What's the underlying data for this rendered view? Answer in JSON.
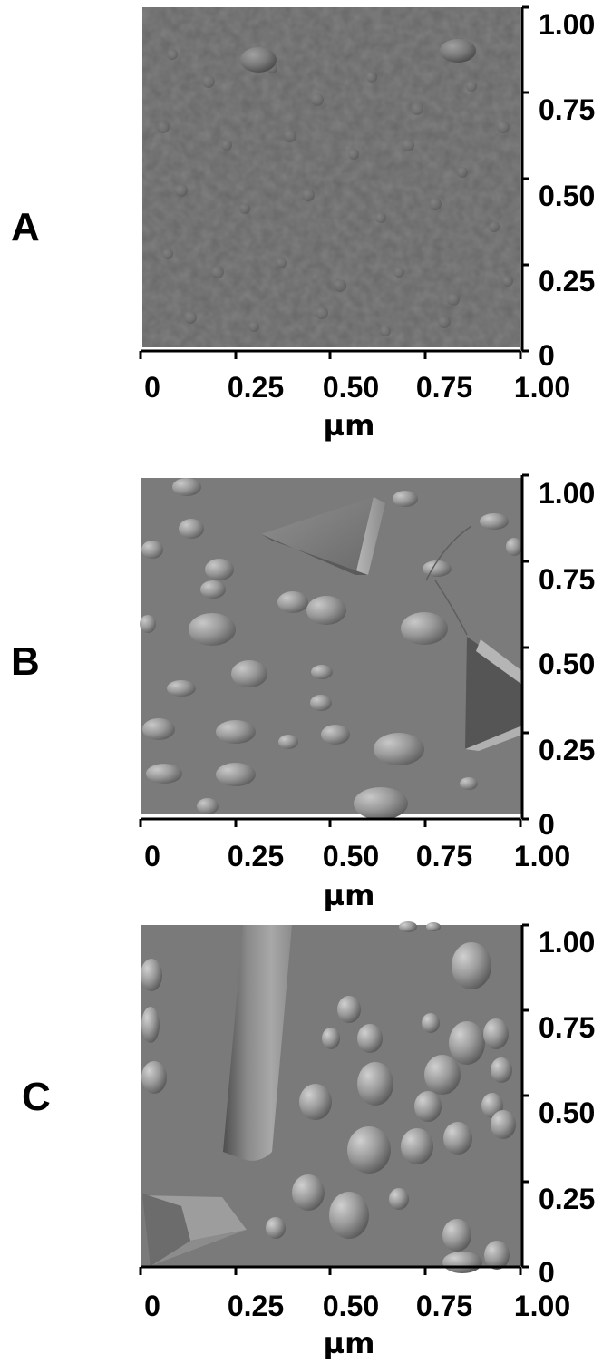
{
  "figure": {
    "panels": [
      {
        "label": "A",
        "x_ticks": [
          "0",
          "0.25",
          "0.50",
          "0.75",
          "1.00"
        ],
        "y_ticks": [
          "1.00",
          "0.75",
          "0.50",
          "0.25",
          "0"
        ],
        "x_unit": "µm"
      },
      {
        "label": "B",
        "x_ticks": [
          "0",
          "0.25",
          "0.50",
          "0.75",
          "1.00"
        ],
        "y_ticks": [
          "1.00",
          "0.75",
          "0.50",
          "0.25",
          "0"
        ],
        "x_unit": "µm"
      },
      {
        "label": "C",
        "x_ticks": [
          "0",
          "0.25",
          "0.50",
          "0.75",
          "1.00"
        ],
        "y_ticks": [
          "1.00",
          "0.75",
          "0.50",
          "0.25",
          "0"
        ],
        "x_unit": "µm"
      }
    ]
  }
}
